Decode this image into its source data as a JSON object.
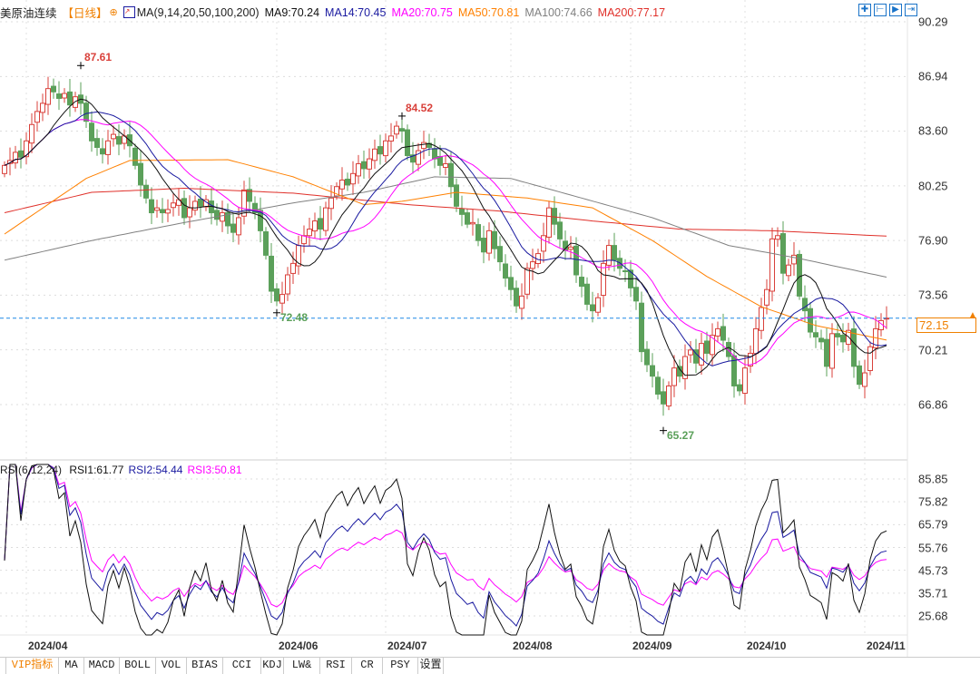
{
  "header": {
    "instrument": "美原油连续",
    "period": "【日线】",
    "ma_label": "MA(9,14,20,50,100,200)",
    "ma_values": [
      {
        "text": "MA9:70.24",
        "color": "#111111"
      },
      {
        "text": "MA14:70.45",
        "color": "#1a1aa0"
      },
      {
        "text": "MA20:70.75",
        "color": "#ff00ff"
      },
      {
        "text": "MA50:70.81",
        "color": "#ff8000"
      },
      {
        "text": "MA100:74.66",
        "color": "#808080"
      },
      {
        "text": "MA200:77.17",
        "color": "#e0302a"
      }
    ]
  },
  "toolbar_icons": [
    "crosshair-icon",
    "zoom-range-icon",
    "play-icon",
    "exit-icon"
  ],
  "current_price": "72.15",
  "rsi_header": {
    "label": "RSI(6,12,24)",
    "values": [
      {
        "text": "RSI1:61.77",
        "color": "#111111"
      },
      {
        "text": "RSI2:54.44",
        "color": "#1a1aa0"
      },
      {
        "text": "RSI3:50.81",
        "color": "#ff00ff"
      }
    ]
  },
  "tabs": [
    "VIP指标",
    "MA",
    "MACD",
    "BOLL",
    "VOL",
    "BIAS",
    "CCI",
    "KDJ",
    "LW&",
    "RSI",
    "CR",
    "PSY",
    "设置"
  ],
  "colors": {
    "up": "#d9413b",
    "down": "#5ba05a",
    "ma9": "#111111",
    "ma14": "#1a1aa0",
    "ma20": "#ff00ff",
    "ma50": "#ff8000",
    "ma100": "#808080",
    "ma200": "#e0302a",
    "rsi1": "#111111",
    "rsi2": "#1a1aa0",
    "rsi3": "#ff00ff",
    "last": "#1e88e5"
  },
  "chart_data": {
    "type": "candlestick",
    "title": "美原油连续 日线",
    "y_ticks": [
      "90.29",
      "86.94",
      "83.60",
      "80.25",
      "76.90",
      "73.56",
      "70.21",
      "66.86"
    ],
    "ylim": [
      66.86,
      90.29
    ],
    "x_ticks": [
      {
        "label": "2024/04",
        "index": 4
      },
      {
        "label": "2024/06",
        "index": 50
      },
      {
        "label": "2024/07",
        "index": 70
      },
      {
        "label": "2024/08",
        "index": 93
      },
      {
        "label": "2024/09",
        "index": 115
      },
      {
        "label": "2024/10",
        "index": 136
      },
      {
        "label": "2024/11",
        "index": 158
      }
    ],
    "close": [
      81.5,
      81.8,
      82.3,
      82.0,
      83.0,
      84.0,
      84.8,
      85.3,
      86.2,
      86.0,
      85.6,
      85.9,
      85.2,
      85.7,
      85.3,
      84.2,
      83.0,
      82.6,
      82.2,
      83.0,
      83.4,
      82.8,
      83.3,
      82.7,
      81.5,
      80.3,
      79.5,
      78.6,
      78.9,
      78.6,
      78.8,
      79.2,
      79.4,
      78.3,
      78.9,
      79.3,
      79.0,
      79.4,
      78.6,
      78.2,
      78.6,
      77.8,
      77.4,
      78.3,
      80.0,
      79.3,
      78.6,
      77.5,
      76.0,
      73.8,
      73.2,
      73.6,
      74.8,
      75.5,
      76.6,
      77.2,
      77.6,
      78.1,
      77.6,
      78.9,
      79.5,
      80.2,
      80.6,
      80.3,
      81.0,
      81.6,
      81.3,
      81.9,
      82.5,
      82.2,
      83.0,
      83.3,
      83.9,
      83.6,
      82.1,
      81.7,
      82.4,
      82.9,
      82.6,
      81.9,
      81.5,
      81.6,
      80.2,
      79.0,
      78.5,
      77.9,
      78.0,
      76.9,
      76.2,
      77.5,
      76.4,
      75.6,
      74.6,
      73.9,
      72.9,
      73.5,
      75.2,
      75.6,
      76.1,
      77.2,
      78.9,
      77.9,
      77.0,
      76.3,
      76.5,
      74.8,
      74.1,
      73.0,
      72.6,
      73.4,
      75.5,
      76.6,
      75.7,
      75.2,
      75.0,
      74.0,
      73.2,
      70.1,
      69.3,
      68.6,
      67.5,
      66.9,
      68.0,
      69.1,
      68.6,
      69.8,
      70.2,
      69.4,
      70.6,
      70.0,
      71.1,
      71.5,
      70.8,
      69.8,
      68.0,
      67.7,
      69.1,
      70.0,
      71.5,
      72.8,
      73.9,
      77.0,
      77.2,
      74.9,
      75.4,
      76.0,
      73.5,
      72.6,
      71.3,
      71.0,
      70.7,
      69.2,
      71.2,
      71.0,
      70.7,
      71.4,
      69.2,
      68.1,
      68.8,
      70.4,
      71.5,
      72.0,
      72.15
    ],
    "long_ma_samples": {
      "ma50": [
        [
          0,
          77.3
        ],
        [
          15,
          80.7
        ],
        [
          23,
          81.8
        ],
        [
          41,
          81.85
        ],
        [
          53,
          80.8
        ],
        [
          66,
          79.1
        ],
        [
          73,
          79.3
        ],
        [
          83,
          79.85
        ],
        [
          96,
          79.5
        ],
        [
          108,
          78.9
        ],
        [
          119,
          76.9
        ],
        [
          129,
          74.7
        ],
        [
          139,
          72.85
        ],
        [
          149,
          71.7
        ],
        [
          162,
          70.81
        ]
      ],
      "ma100": [
        [
          0,
          75.7
        ],
        [
          16,
          76.9
        ],
        [
          33,
          78.0
        ],
        [
          53,
          79.2
        ],
        [
          66,
          79.85
        ],
        [
          79,
          80.8
        ],
        [
          93,
          80.7
        ],
        [
          106,
          79.5
        ],
        [
          119,
          78.3
        ],
        [
          133,
          76.6
        ],
        [
          146,
          75.8
        ],
        [
          162,
          74.66
        ]
      ],
      "ma200": [
        [
          0,
          78.6
        ],
        [
          16,
          79.85
        ],
        [
          33,
          80.1
        ],
        [
          53,
          79.8
        ],
        [
          74,
          79.1
        ],
        [
          91,
          78.7
        ],
        [
          108,
          78.1
        ],
        [
          124,
          77.6
        ],
        [
          141,
          77.5
        ],
        [
          162,
          77.17
        ]
      ]
    },
    "annotations": [
      {
        "text": "87.61",
        "index": 14,
        "price": 87.61,
        "kind": "high"
      },
      {
        "text": "84.52",
        "index": 73,
        "price": 84.52,
        "kind": "high"
      },
      {
        "text": "72.48",
        "index": 50,
        "price": 72.48,
        "kind": "low"
      },
      {
        "text": "65.27",
        "index": 121,
        "price": 65.27,
        "kind": "low"
      }
    ],
    "rsi": {
      "periods": [
        6,
        12,
        24
      ],
      "y_ticks": [
        "85.85",
        "75.82",
        "65.79",
        "55.76",
        "45.73",
        "35.71",
        "25.68"
      ],
      "ylim": [
        25.68,
        85.85
      ]
    }
  }
}
